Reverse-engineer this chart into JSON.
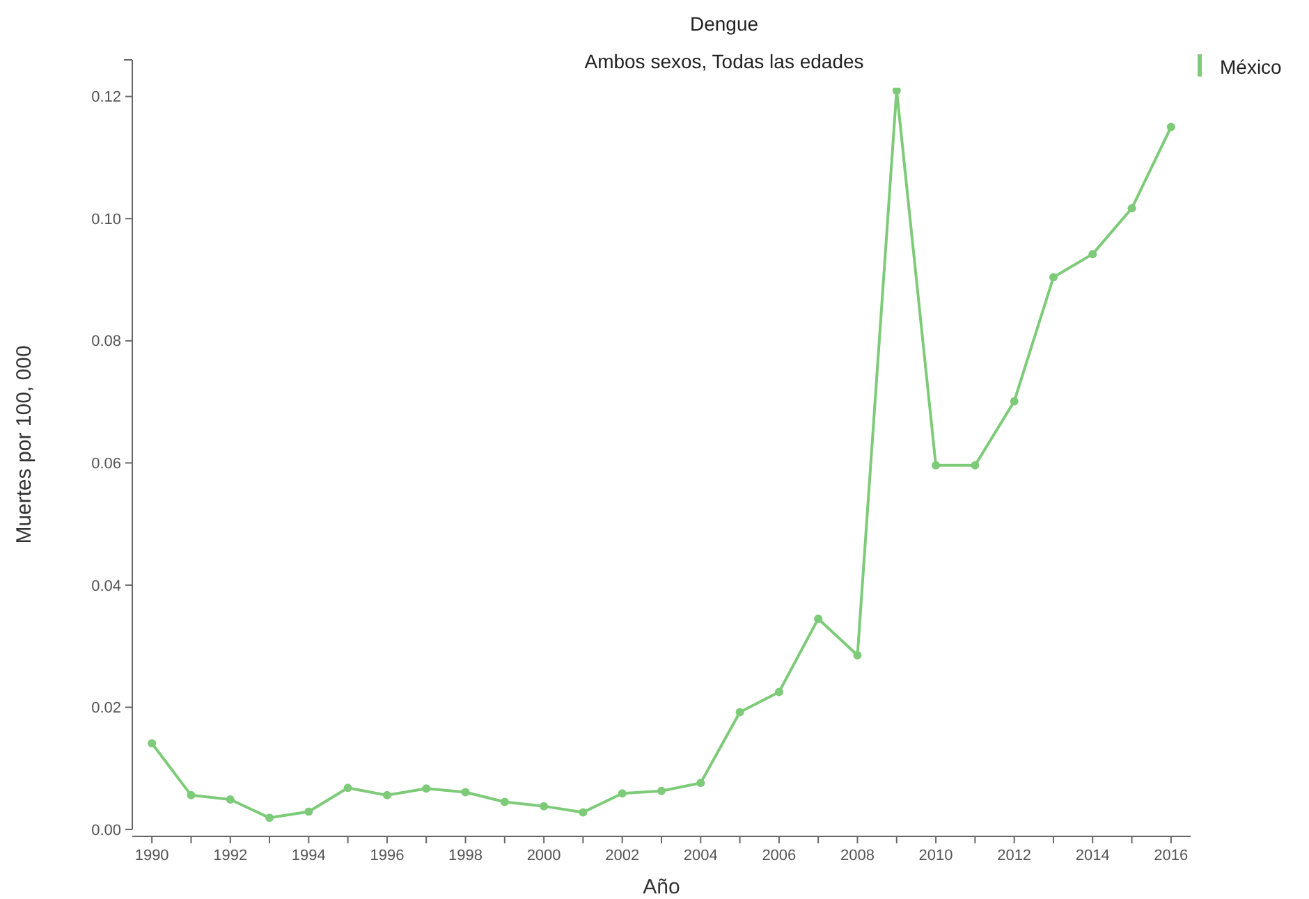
{
  "chart_data": {
    "type": "line",
    "title": "Dengue",
    "subtitle": "Ambos sexos, Todas las edades",
    "xlabel": "Año",
    "ylabel": "Muertes por 100, 000",
    "x": [
      1990,
      1991,
      1992,
      1993,
      1994,
      1995,
      1996,
      1997,
      1998,
      1999,
      2000,
      2001,
      2002,
      2003,
      2004,
      2005,
      2006,
      2007,
      2008,
      2009,
      2010,
      2011,
      2012,
      2013,
      2014,
      2015,
      2016
    ],
    "series": [
      {
        "name": "México",
        "color": "#7dcb78",
        "values": [
          0.0141,
          0.0056,
          0.0049,
          0.0019,
          0.0029,
          0.0068,
          0.0056,
          0.0067,
          0.0061,
          0.0045,
          0.0038,
          0.0028,
          0.0059,
          0.0063,
          0.0076,
          0.0192,
          0.0225,
          0.0345,
          0.0285,
          0.121,
          0.0596,
          0.0596,
          0.0701,
          0.0904,
          0.0942,
          0.1017,
          0.115
        ]
      }
    ],
    "xlim": [
      1989.5,
      2016.5
    ],
    "xticks": [
      1990,
      {
        "value": 1991,
        "label": null
      },
      1992,
      {
        "value": 1993,
        "label": null
      },
      1994,
      {
        "value": 1995,
        "label": null
      },
      1996,
      {
        "value": 1997,
        "label": null
      },
      1998,
      {
        "value": 1999,
        "label": null
      },
      2000,
      {
        "value": 2001,
        "label": null
      },
      2002,
      {
        "value": 2003,
        "label": null
      },
      2004,
      {
        "value": 2005,
        "label": null
      },
      2006,
      {
        "value": 2007,
        "label": null
      },
      2008,
      {
        "value": 2009,
        "label": null
      },
      2010,
      {
        "value": 2011,
        "label": null
      },
      2012,
      {
        "value": 2013,
        "label": null
      },
      2014,
      {
        "value": 2015,
        "label": null
      },
      2016
    ],
    "ylim": [
      0,
      0.126
    ],
    "yticks": [
      {
        "value": 0,
        "label": "0.00"
      },
      {
        "value": 0.02,
        "label": "0.02"
      },
      {
        "value": 0.04,
        "label": "0.04"
      },
      {
        "value": 0.06,
        "label": "0.06"
      },
      {
        "value": 0.08,
        "label": "0.08"
      },
      {
        "value": 0.1,
        "label": "0.10"
      },
      {
        "value": 0.12,
        "label": "0.12"
      }
    ],
    "grid": false,
    "legend": "top right",
    "marker": "circle",
    "line_style": "solid"
  }
}
